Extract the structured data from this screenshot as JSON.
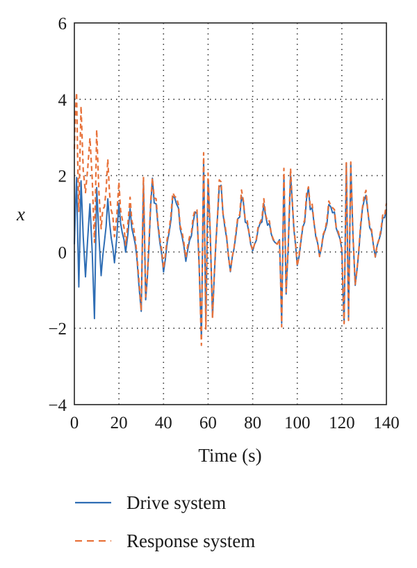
{
  "chart_data": {
    "type": "line",
    "title": "",
    "xlabel": "Time (s)",
    "ylabel": "x",
    "xlim": [
      0,
      140
    ],
    "ylim": [
      -4,
      6
    ],
    "xticks": [
      "0",
      "20",
      "40",
      "60",
      "80",
      "100",
      "120",
      "140"
    ],
    "yticks": [
      "6",
      "4",
      "2",
      "0",
      "−2",
      "−4"
    ],
    "grid": true,
    "legend_position": "bottom",
    "bursts_at_time": [
      0,
      30,
      57,
      93,
      121
    ],
    "series": [
      {
        "name": "Drive system",
        "color": "#2e6db4",
        "style": "solid",
        "x": [
          0,
          1,
          2,
          3,
          5,
          7,
          9,
          10,
          12,
          15,
          18,
          20,
          23,
          25,
          28,
          30,
          31,
          32,
          35,
          40,
          45,
          50,
          55,
          57,
          58,
          59,
          60,
          62,
          65,
          70,
          75,
          80,
          85,
          90,
          92,
          93,
          94,
          95,
          97,
          100,
          105,
          110,
          115,
          120,
          121,
          122,
          123,
          124,
          126,
          130,
          135,
          140
        ],
        "y": [
          0.2,
          1.8,
          -0.8,
          1.6,
          -0.7,
          1.4,
          -1.5,
          1.5,
          -0.6,
          1.2,
          -0.3,
          1.1,
          0.0,
          1.0,
          -0.1,
          -1.7,
          2.1,
          -1.5,
          1.9,
          -0.5,
          1.6,
          -0.2,
          1.2,
          -2.1,
          2.4,
          -2.0,
          2.2,
          -1.5,
          1.9,
          -0.5,
          1.4,
          0.0,
          1.1,
          0.2,
          0.3,
          -1.9,
          2.2,
          -1.3,
          1.8,
          -0.4,
          1.6,
          -0.1,
          1.3,
          0.1,
          -2.0,
          2.3,
          -1.6,
          2.0,
          -1.0,
          1.6,
          -0.1,
          1.2
        ]
      },
      {
        "name": "Response system",
        "color": "#e8723a",
        "style": "dashed",
        "x": [
          0,
          1,
          2,
          3,
          5,
          7,
          9,
          10,
          12,
          15,
          18,
          20,
          23,
          25,
          28,
          30,
          31,
          32,
          35,
          40,
          45,
          50,
          55,
          57,
          58,
          59,
          60,
          62,
          65,
          70,
          75,
          80,
          85,
          90,
          92,
          93,
          94,
          95,
          97,
          100,
          105,
          110,
          115,
          120,
          121,
          122,
          123,
          124,
          126,
          130,
          135,
          140
        ],
        "y": [
          2.6,
          4.1,
          1.2,
          3.5,
          1.4,
          3.1,
          0.3,
          2.9,
          0.6,
          2.1,
          0.4,
          1.6,
          0.2,
          1.3,
          0.0,
          -1.6,
          2.2,
          -1.4,
          2.0,
          -0.4,
          1.7,
          -0.1,
          1.3,
          -2.2,
          2.5,
          -2.1,
          2.3,
          -1.5,
          2.0,
          -0.5,
          1.5,
          0.0,
          1.2,
          0.2,
          0.3,
          -1.9,
          2.3,
          -1.2,
          1.9,
          -0.4,
          1.7,
          -0.1,
          1.4,
          0.1,
          -2.1,
          2.4,
          -1.7,
          2.1,
          -1.0,
          1.7,
          -0.1,
          1.3
        ]
      }
    ]
  }
}
